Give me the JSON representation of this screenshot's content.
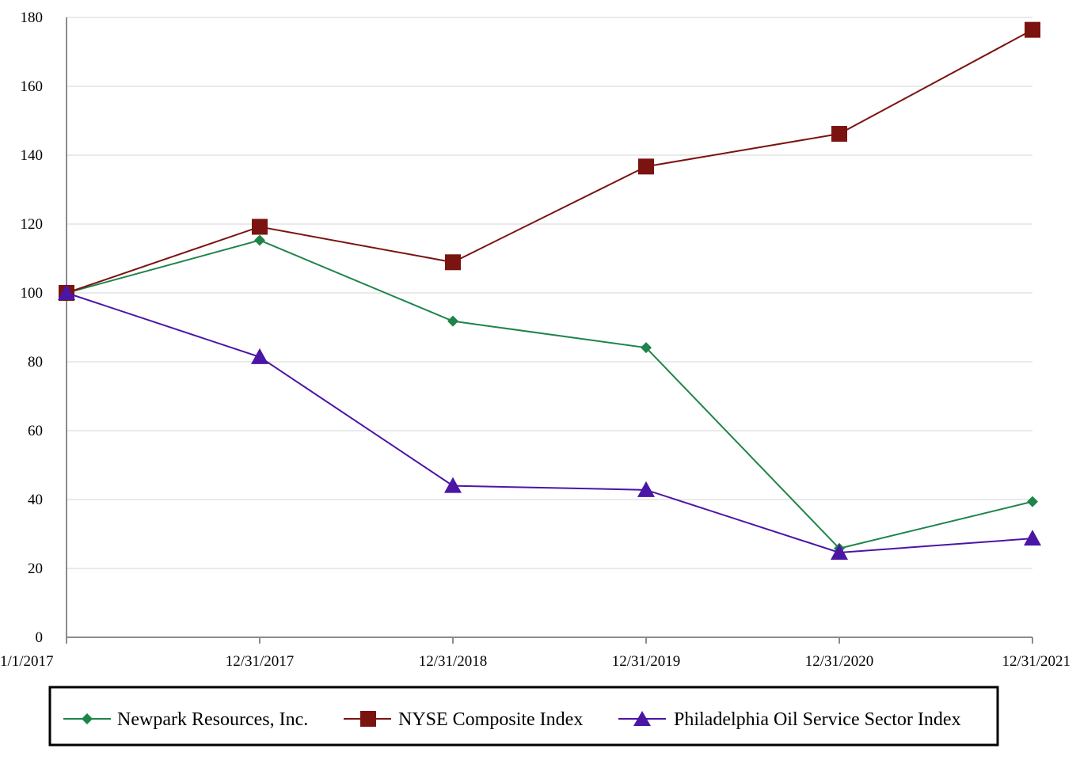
{
  "chart_data": {
    "type": "line",
    "title": "",
    "xlabel": "",
    "ylabel": "",
    "categories": [
      "1/1/2017",
      "12/31/2017",
      "12/31/2018",
      "12/31/2019",
      "12/31/2020",
      "12/31/2021"
    ],
    "ylim": [
      0,
      180
    ],
    "yticks": [
      0,
      20,
      40,
      60,
      80,
      100,
      120,
      140,
      160,
      180
    ],
    "grid": true,
    "legend_position": "bottom",
    "series": [
      {
        "name": "Newpark Resources, Inc.",
        "color": "#1e8449",
        "marker": "diamond",
        "values": [
          100,
          115.3,
          91.8,
          84.1,
          25.8,
          39.4
        ]
      },
      {
        "name": "NYSE Composite Index",
        "color": "#7b1410",
        "marker": "square",
        "values": [
          100,
          119.2,
          108.9,
          136.7,
          146.2,
          176.4
        ]
      },
      {
        "name": "Philadelphia Oil Service Sector Index",
        "color": "#4b15a5",
        "marker": "triangle",
        "values": [
          100,
          81.4,
          44.0,
          42.8,
          24.6,
          28.7
        ]
      }
    ]
  }
}
